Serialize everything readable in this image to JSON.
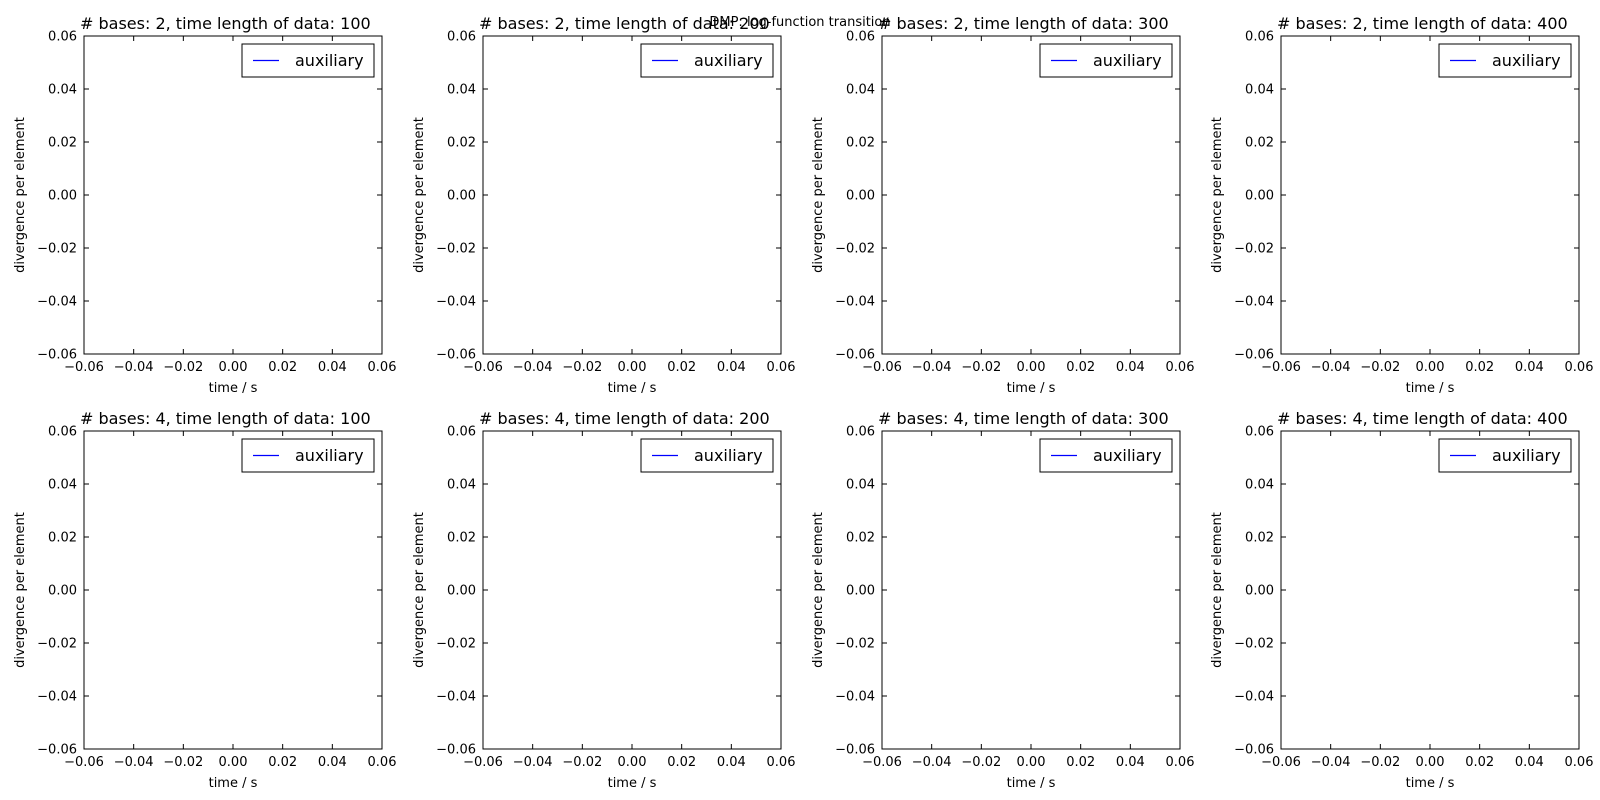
{
  "figure": {
    "suptitle": "DMP: log-function transition"
  },
  "chart_data": [
    {
      "type": "line",
      "title": "# bases: 2, time length of data: 100",
      "xlabel": "time / s",
      "ylabel": "divergence per element",
      "xlim": [
        -0.06,
        0.06
      ],
      "ylim": [
        -0.06,
        0.06
      ],
      "xticks": [
        "−0.06",
        "−0.04",
        "−0.02",
        "0.00",
        "0.02",
        "0.04",
        "0.06"
      ],
      "yticks": [
        "−0.06",
        "−0.04",
        "−0.02",
        "0.00",
        "0.02",
        "0.04",
        "0.06"
      ],
      "grid": false,
      "legend_position": "top-right",
      "series": [
        {
          "name": "auxiliary",
          "color": "#0000ff",
          "x": [],
          "y": []
        }
      ]
    },
    {
      "type": "line",
      "title": "# bases: 2, time length of data: 200",
      "xlabel": "time / s",
      "ylabel": "divergence per element",
      "xlim": [
        -0.06,
        0.06
      ],
      "ylim": [
        -0.06,
        0.06
      ],
      "xticks": [
        "−0.06",
        "−0.04",
        "−0.02",
        "0.00",
        "0.02",
        "0.04",
        "0.06"
      ],
      "yticks": [
        "−0.06",
        "−0.04",
        "−0.02",
        "0.00",
        "0.02",
        "0.04",
        "0.06"
      ],
      "grid": false,
      "legend_position": "top-right",
      "series": [
        {
          "name": "auxiliary",
          "color": "#0000ff",
          "x": [],
          "y": []
        }
      ]
    },
    {
      "type": "line",
      "title": "# bases: 2, time length of data: 300",
      "xlabel": "time / s",
      "ylabel": "divergence per element",
      "xlim": [
        -0.06,
        0.06
      ],
      "ylim": [
        -0.06,
        0.06
      ],
      "xticks": [
        "−0.06",
        "−0.04",
        "−0.02",
        "0.00",
        "0.02",
        "0.04",
        "0.06"
      ],
      "yticks": [
        "−0.06",
        "−0.04",
        "−0.02",
        "0.00",
        "0.02",
        "0.04",
        "0.06"
      ],
      "grid": false,
      "legend_position": "top-right",
      "series": [
        {
          "name": "auxiliary",
          "color": "#0000ff",
          "x": [],
          "y": []
        }
      ]
    },
    {
      "type": "line",
      "title": "# bases: 2, time length of data: 400",
      "xlabel": "time / s",
      "ylabel": "divergence per element",
      "xlim": [
        -0.06,
        0.06
      ],
      "ylim": [
        -0.06,
        0.06
      ],
      "xticks": [
        "−0.06",
        "−0.04",
        "−0.02",
        "0.00",
        "0.02",
        "0.04",
        "0.06"
      ],
      "yticks": [
        "−0.06",
        "−0.04",
        "−0.02",
        "0.00",
        "0.02",
        "0.04",
        "0.06"
      ],
      "grid": false,
      "legend_position": "top-right",
      "series": [
        {
          "name": "auxiliary",
          "color": "#0000ff",
          "x": [],
          "y": []
        }
      ]
    },
    {
      "type": "line",
      "title": "# bases: 4, time length of data: 100",
      "xlabel": "time / s",
      "ylabel": "divergence per element",
      "xlim": [
        -0.06,
        0.06
      ],
      "ylim": [
        -0.06,
        0.06
      ],
      "xticks": [
        "−0.06",
        "−0.04",
        "−0.02",
        "0.00",
        "0.02",
        "0.04",
        "0.06"
      ],
      "yticks": [
        "−0.06",
        "−0.04",
        "−0.02",
        "0.00",
        "0.02",
        "0.04",
        "0.06"
      ],
      "grid": false,
      "legend_position": "top-right",
      "series": [
        {
          "name": "auxiliary",
          "color": "#0000ff",
          "x": [],
          "y": []
        }
      ]
    },
    {
      "type": "line",
      "title": "# bases: 4, time length of data: 200",
      "xlabel": "time / s",
      "ylabel": "divergence per element",
      "xlim": [
        -0.06,
        0.06
      ],
      "ylim": [
        -0.06,
        0.06
      ],
      "xticks": [
        "−0.06",
        "−0.04",
        "−0.02",
        "0.00",
        "0.02",
        "0.04",
        "0.06"
      ],
      "yticks": [
        "−0.06",
        "−0.04",
        "−0.02",
        "0.00",
        "0.02",
        "0.04",
        "0.06"
      ],
      "grid": false,
      "legend_position": "top-right",
      "series": [
        {
          "name": "auxiliary",
          "color": "#0000ff",
          "x": [],
          "y": []
        }
      ]
    },
    {
      "type": "line",
      "title": "# bases: 4, time length of data: 300",
      "xlabel": "time / s",
      "ylabel": "divergence per element",
      "xlim": [
        -0.06,
        0.06
      ],
      "ylim": [
        -0.06,
        0.06
      ],
      "xticks": [
        "−0.06",
        "−0.04",
        "−0.02",
        "0.00",
        "0.02",
        "0.04",
        "0.06"
      ],
      "yticks": [
        "−0.06",
        "−0.04",
        "−0.02",
        "0.00",
        "0.02",
        "0.04",
        "0.06"
      ],
      "grid": false,
      "legend_position": "top-right",
      "series": [
        {
          "name": "auxiliary",
          "color": "#0000ff",
          "x": [],
          "y": []
        }
      ]
    },
    {
      "type": "line",
      "title": "# bases: 4, time length of data: 400",
      "xlabel": "time / s",
      "ylabel": "divergence per element",
      "xlim": [
        -0.06,
        0.06
      ],
      "ylim": [
        -0.06,
        0.06
      ],
      "xticks": [
        "−0.06",
        "−0.04",
        "−0.02",
        "0.00",
        "0.02",
        "0.04",
        "0.06"
      ],
      "yticks": [
        "−0.06",
        "−0.04",
        "−0.02",
        "0.00",
        "0.02",
        "0.04",
        "0.06"
      ],
      "grid": false,
      "legend_position": "top-right",
      "series": [
        {
          "name": "auxiliary",
          "color": "#0000ff",
          "x": [],
          "y": []
        }
      ]
    }
  ]
}
